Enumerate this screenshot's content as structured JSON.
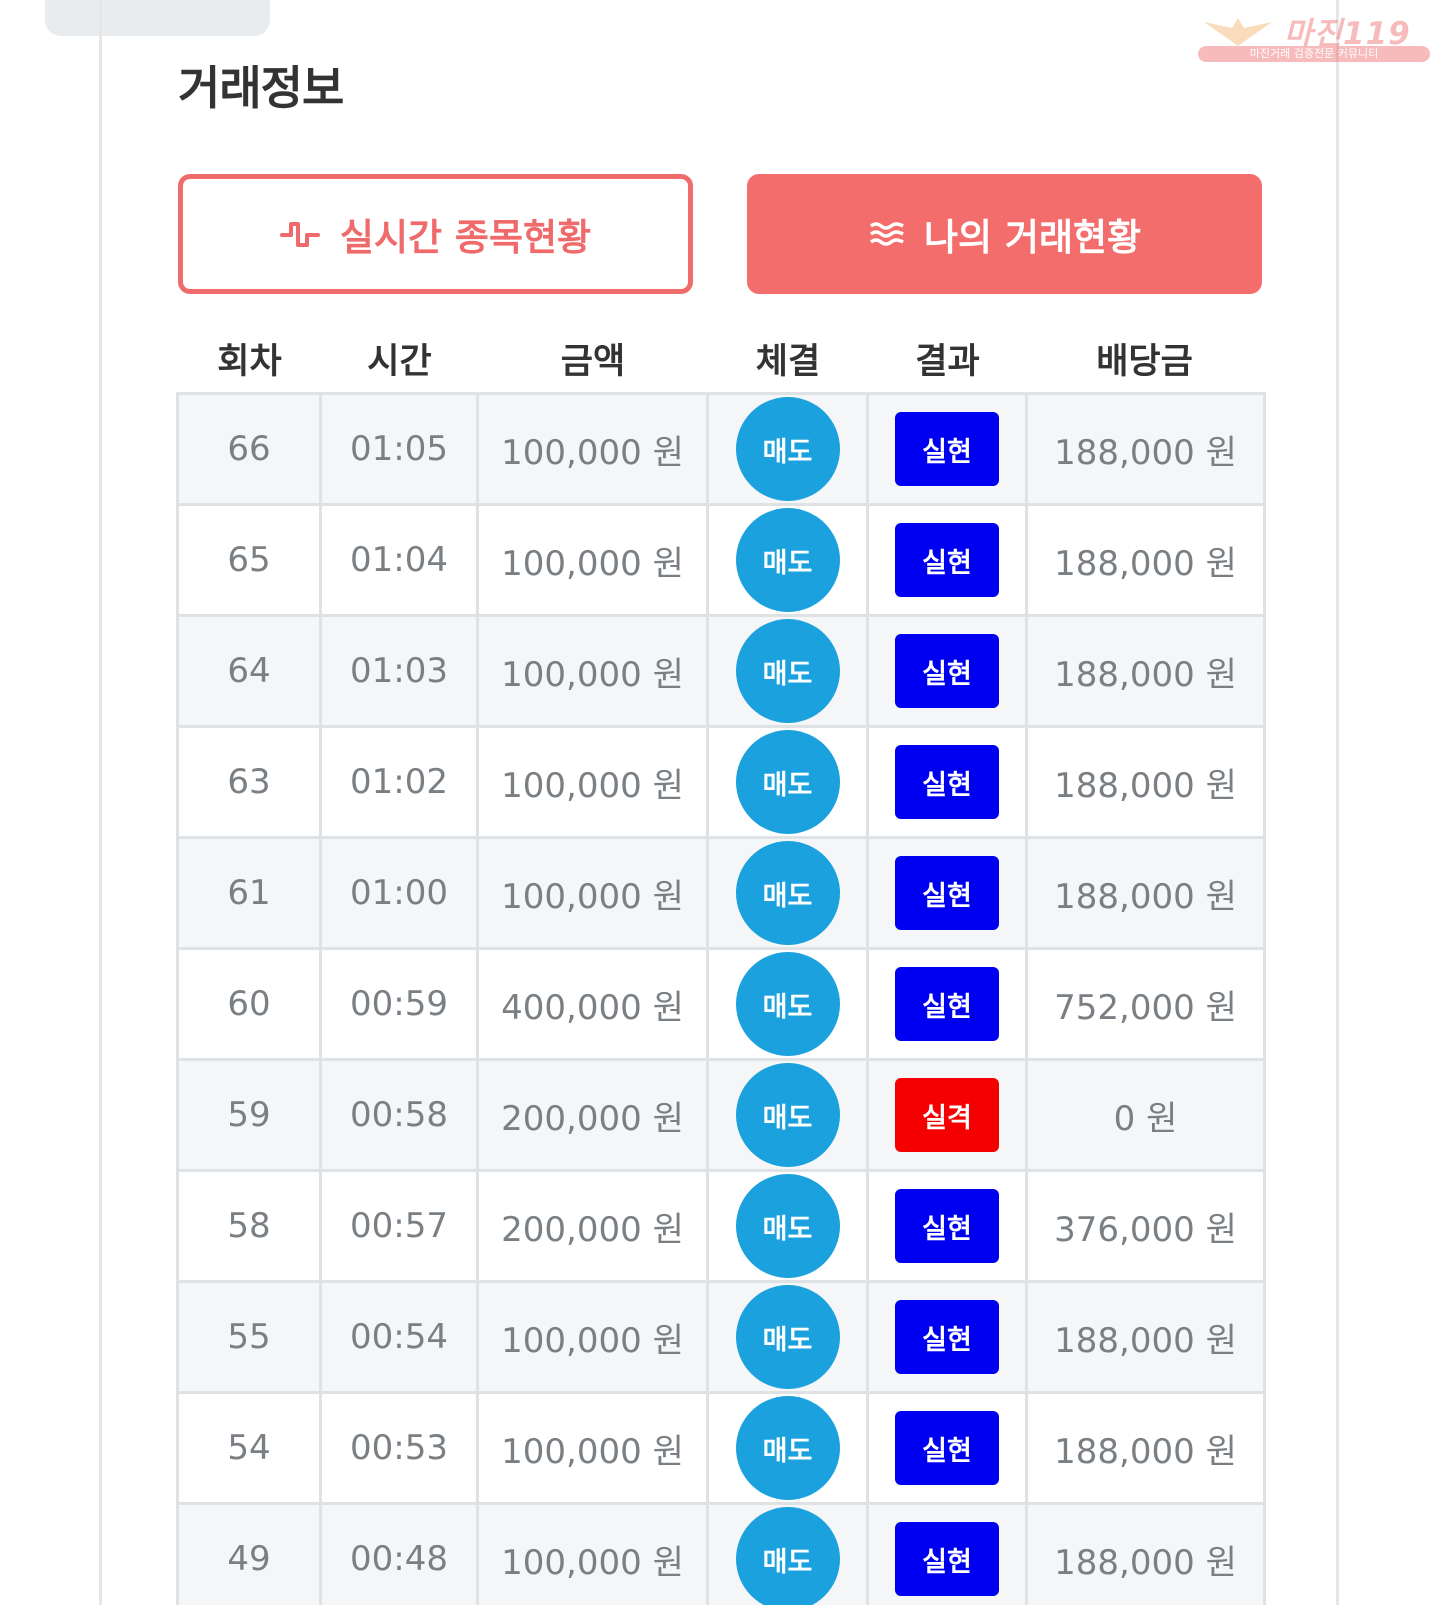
{
  "watermark": {
    "brand": "마진119",
    "tagline": "마진거래 검증전문 커뮤니티"
  },
  "section": {
    "title": "거래정보"
  },
  "tabs": [
    {
      "label": "실시간 종목현황",
      "icon": "pulse-icon",
      "active": false
    },
    {
      "label": "나의 거래현황",
      "icon": "menu-lines-icon",
      "active": true
    }
  ],
  "colors": {
    "accent": "#f36d6d",
    "sell_badge": "#1aa1de",
    "result_win": "#0000f0",
    "result_loss": "#f50000"
  },
  "table": {
    "headers": [
      "회차",
      "시간",
      "금액",
      "체결",
      "결과",
      "배당금"
    ],
    "rows": [
      {
        "round": "66",
        "time": "01:05",
        "amount": "100,000 원",
        "trade": "매도",
        "result": "실현",
        "payout": "188,000 원"
      },
      {
        "round": "65",
        "time": "01:04",
        "amount": "100,000 원",
        "trade": "매도",
        "result": "실현",
        "payout": "188,000 원"
      },
      {
        "round": "64",
        "time": "01:03",
        "amount": "100,000 원",
        "trade": "매도",
        "result": "실현",
        "payout": "188,000 원"
      },
      {
        "round": "63",
        "time": "01:02",
        "amount": "100,000 원",
        "trade": "매도",
        "result": "실현",
        "payout": "188,000 원"
      },
      {
        "round": "61",
        "time": "01:00",
        "amount": "100,000 원",
        "trade": "매도",
        "result": "실현",
        "payout": "188,000 원"
      },
      {
        "round": "60",
        "time": "00:59",
        "amount": "400,000 원",
        "trade": "매도",
        "result": "실현",
        "payout": "752,000 원"
      },
      {
        "round": "59",
        "time": "00:58",
        "amount": "200,000 원",
        "trade": "매도",
        "result": "실격",
        "payout": "0 원"
      },
      {
        "round": "58",
        "time": "00:57",
        "amount": "200,000 원",
        "trade": "매도",
        "result": "실현",
        "payout": "376,000 원"
      },
      {
        "round": "55",
        "time": "00:54",
        "amount": "100,000 원",
        "trade": "매도",
        "result": "실현",
        "payout": "188,000 원"
      },
      {
        "round": "54",
        "time": "00:53",
        "amount": "100,000 원",
        "trade": "매도",
        "result": "실현",
        "payout": "188,000 원"
      },
      {
        "round": "49",
        "time": "00:48",
        "amount": "100,000 원",
        "trade": "매도",
        "result": "실현",
        "payout": "188,000 원"
      }
    ]
  }
}
